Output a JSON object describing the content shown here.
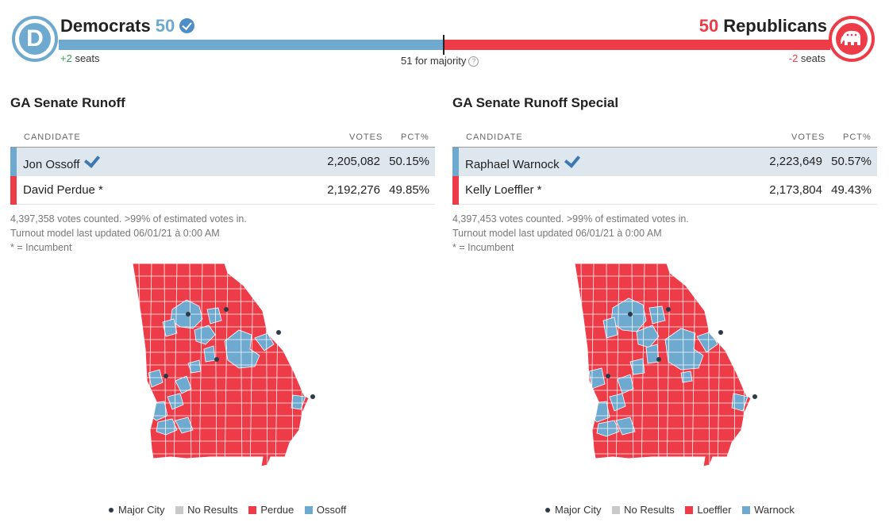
{
  "colors": {
    "dem": "#6ea9d0",
    "rep": "#ee3b48",
    "nores": "#c9c9c9",
    "city": "#2c3a48",
    "win_row": "#dfe7ee"
  },
  "balance": {
    "dem": {
      "name": "Democrats",
      "count": "50",
      "change": "+2",
      "seats_label": "seats",
      "logo_letter": "D"
    },
    "rep": {
      "name": "Republicans",
      "count": "50",
      "change": "-2",
      "seats_label": "seats"
    },
    "majority": "51 for majority",
    "help_glyph": "?"
  },
  "races": [
    {
      "title": "GA Senate Runoff",
      "headers": {
        "candidate": "CANDIDATE",
        "votes": "VOTES",
        "pct": "PCT%"
      },
      "candidates": [
        {
          "name": "Jon Ossoff",
          "votes": "2,205,082",
          "pct": "50.15%",
          "party": "dem",
          "winner": true
        },
        {
          "name": "David Perdue *",
          "votes": "2,192,276",
          "pct": "49.85%",
          "party": "rep",
          "winner": false
        }
      ],
      "notes": [
        "4,397,358 votes counted. >99% of estimated votes in.",
        "Turnout model last updated 06/01/21 à 0:00 AM",
        "* = Incumbent"
      ],
      "legend": {
        "city": "Major City",
        "nores": "No Results",
        "rep": "Perdue",
        "dem": "Ossoff"
      }
    },
    {
      "title": "GA Senate Runoff Special",
      "headers": {
        "candidate": "CANDIDATE",
        "votes": "VOTES",
        "pct": "PCT%"
      },
      "candidates": [
        {
          "name": "Raphael Warnock",
          "votes": "2,223,649",
          "pct": "50.57%",
          "party": "dem",
          "winner": true
        },
        {
          "name": "Kelly Loeffler *",
          "votes": "2,173,804",
          "pct": "49.43%",
          "party": "rep",
          "winner": false
        }
      ],
      "notes": [
        "4,397,453 votes counted. >99% of estimated votes in.",
        "Turnout model last updated 06/01/21 à 0:00 AM",
        "* = Incumbent"
      ],
      "legend": {
        "city": "Major City",
        "nores": "No Results",
        "rep": "Loeffler",
        "dem": "Warnock"
      }
    }
  ],
  "icons": {
    "dem_logo": "democrat-donkey-logo",
    "rep_logo": "republican-elephant-logo",
    "winner": "checkmark-icon",
    "help": "help-icon",
    "city": "major-city-dot"
  }
}
